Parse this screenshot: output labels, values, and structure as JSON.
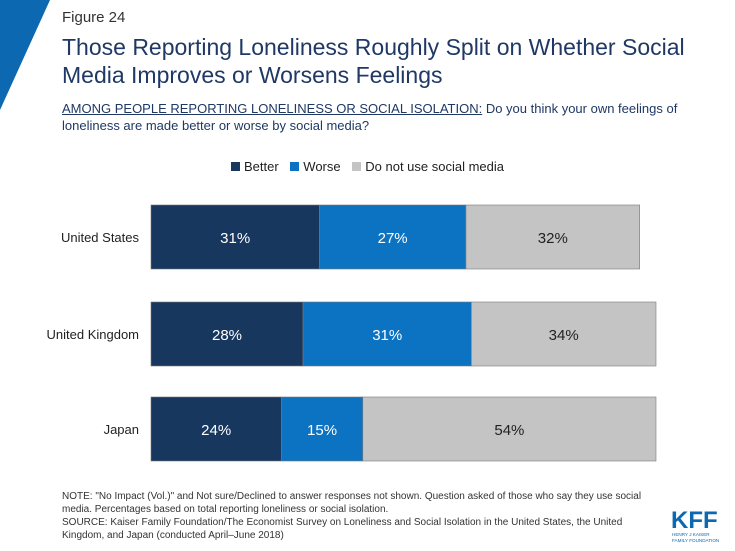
{
  "figure_label": "Figure 24",
  "title": "Those Reporting Loneliness Roughly Split on Whether Social Media Improves or Worsens Feelings",
  "question_prefix": "AMONG PEOPLE REPORTING LONELINESS OR SOCIAL ISOLATION:",
  "question_text": " Do you think your own feelings of loneliness are made better or worse by social media?",
  "colors": {
    "accent": "#0b68b1",
    "better": "#17375e",
    "worse": "#0b73c2",
    "no_social": "#c4c4c4"
  },
  "chart_data": {
    "type": "bar",
    "orientation": "horizontal",
    "stacked": true,
    "categories": [
      "United States",
      "United Kingdom",
      "Japan"
    ],
    "series": [
      {
        "name": "Better",
        "values": [
          31,
          28,
          24
        ],
        "labels": [
          "31%",
          "28%",
          "24%"
        ],
        "color": "#17375e"
      },
      {
        "name": "Worse",
        "values": [
          27,
          31,
          15
        ],
        "labels": [
          "27%",
          "31%",
          "15%"
        ],
        "color": "#0b73c2"
      },
      {
        "name": "Do not use social media",
        "values": [
          32,
          34,
          54
        ],
        "labels": [
          "32%",
          "34%",
          "54%"
        ],
        "color": "#c4c4c4"
      }
    ],
    "legend_position": "top",
    "grid": false,
    "axis_visible": false
  },
  "note": "NOTE: \"No Impact (Vol.)\" and Not sure/Declined to answer responses not shown. Question asked of those who say they use social media. Percentages based on total reporting loneliness or social isolation.",
  "source": "SOURCE: Kaiser Family Foundation/The Economist Survey on Loneliness and Social Isolation in the United States, the United Kingdom, and Japan (conducted April–June 2018)",
  "logo": {
    "main": "KFF",
    "line1": "HENRY J KAISER",
    "line2": "FAMILY FOUNDATION"
  }
}
